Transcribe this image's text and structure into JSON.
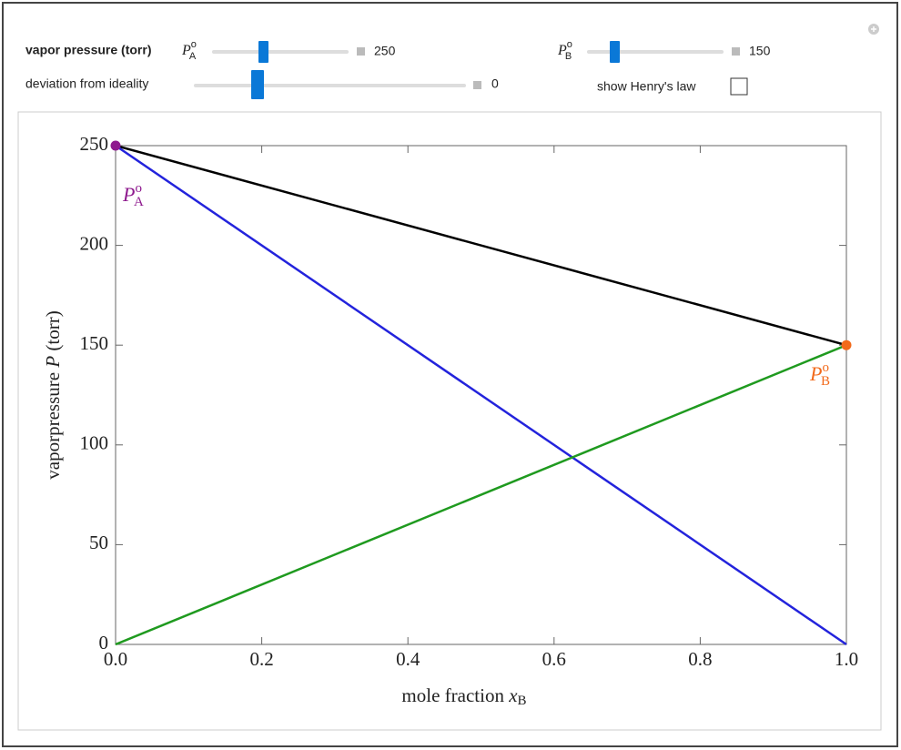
{
  "controls": {
    "heading": "vapor pressure (torr)",
    "pa": {
      "symbol": "P",
      "sup": "o",
      "sub": "A",
      "value": 250
    },
    "pb": {
      "symbol": "P",
      "sup": "o",
      "sub": "B",
      "value": 150
    },
    "deviation": {
      "label": "deviation from ideality",
      "value": 0
    },
    "henry": {
      "label": "show Henry's law",
      "checked": false
    }
  },
  "chart_data": {
    "type": "line",
    "x_label": {
      "text": "mole fraction ",
      "symbol": "x",
      "sub": "B"
    },
    "y_label": {
      "before": "vaporpressure ",
      "symbol": "P",
      "after": " (torr)"
    },
    "x": [
      0,
      1
    ],
    "series": [
      {
        "color": "#000000",
        "values": [
          250,
          150
        ]
      },
      {
        "color": "#2323dc",
        "values": [
          250,
          0
        ]
      },
      {
        "color": "#1f9a1f",
        "values": [
          0,
          150
        ]
      }
    ],
    "points": [
      {
        "x": 0,
        "y": 250,
        "color": "#8e1a8e",
        "label": {
          "symbol": "P",
          "sup": "o",
          "sub": "A"
        }
      },
      {
        "x": 1,
        "y": 150,
        "color": "#f26a1b",
        "label": {
          "symbol": "P",
          "sup": "o",
          "sub": "B"
        }
      }
    ],
    "xlim": [
      0,
      1
    ],
    "ylim": [
      0,
      250
    ],
    "xticks": [
      {
        "value": 0,
        "label": "0.0"
      },
      0.2,
      0.4,
      0.6,
      0.8,
      {
        "value": 1,
        "label": "1.0"
      }
    ],
    "yticks": [
      0,
      50,
      100,
      150,
      200,
      250
    ]
  }
}
